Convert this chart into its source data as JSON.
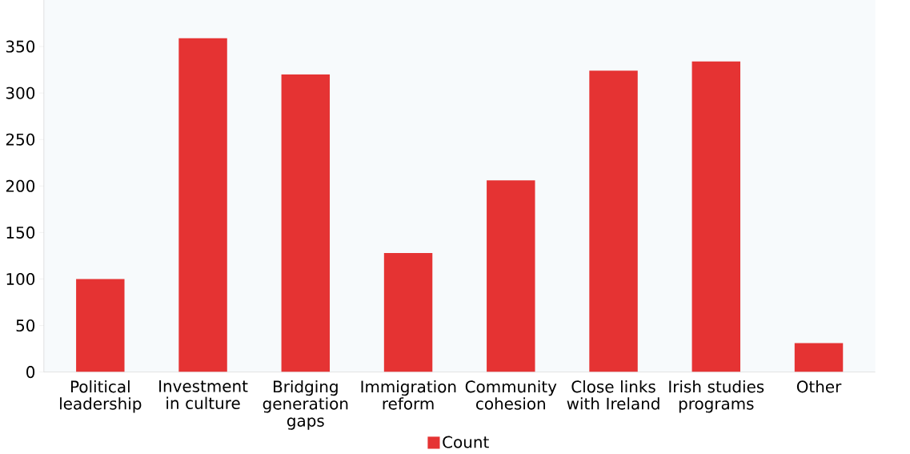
{
  "chart_data": {
    "type": "bar",
    "categories": [
      "Political leadership",
      "Investment in culture",
      "Bridging generation gaps",
      "Immigration reform",
      "Community cohesion",
      "Close links with Ireland",
      "Irish studies programs",
      "Other"
    ],
    "series": [
      {
        "name": "Count",
        "color": "#e53333",
        "values": [
          100,
          359,
          320,
          128,
          206,
          324,
          334,
          31
        ]
      }
    ],
    "ylim": [
      0,
      400
    ],
    "yticks": [
      0,
      50,
      100,
      150,
      200,
      250,
      300,
      350
    ],
    "grid": false,
    "legend": "bottom"
  }
}
